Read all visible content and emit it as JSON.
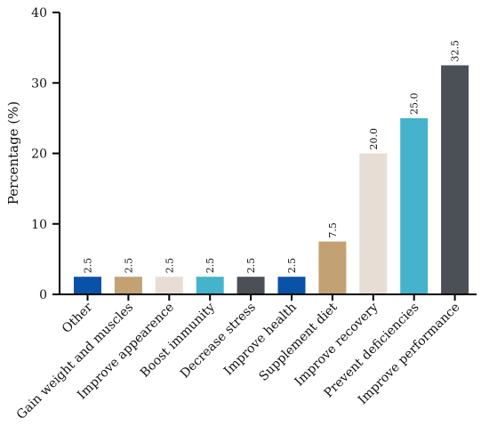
{
  "chart_data": {
    "type": "bar",
    "ylabel": "Percentage (%)",
    "xlabel": "",
    "ylim": [
      0,
      40
    ],
    "yticks": [
      0,
      10,
      20,
      30,
      40
    ],
    "grid": false,
    "categories": [
      "Other",
      "Gain weight and muscles",
      "Improve appearence",
      "Boost immunity",
      "Decrease stress",
      "Improve health",
      "Supplement diet",
      "Improve recovery",
      "Prevent deficiencies",
      "Improve performance"
    ],
    "values": [
      2.5,
      2.5,
      2.5,
      2.5,
      2.5,
      2.5,
      7.5,
      20.0,
      25.0,
      32.5
    ],
    "value_labels": [
      "2.5",
      "2.5",
      "2.5",
      "2.5",
      "2.5",
      "2.5",
      "7.5",
      "20.0",
      "25.0",
      "32.5"
    ],
    "colors": [
      "#0a52a8",
      "#c2a272",
      "#e8ddd4",
      "#45b3cc",
      "#4b5057",
      "#0a52a8",
      "#c2a272",
      "#e8ddd4",
      "#45b3cc",
      "#4b5057"
    ]
  }
}
